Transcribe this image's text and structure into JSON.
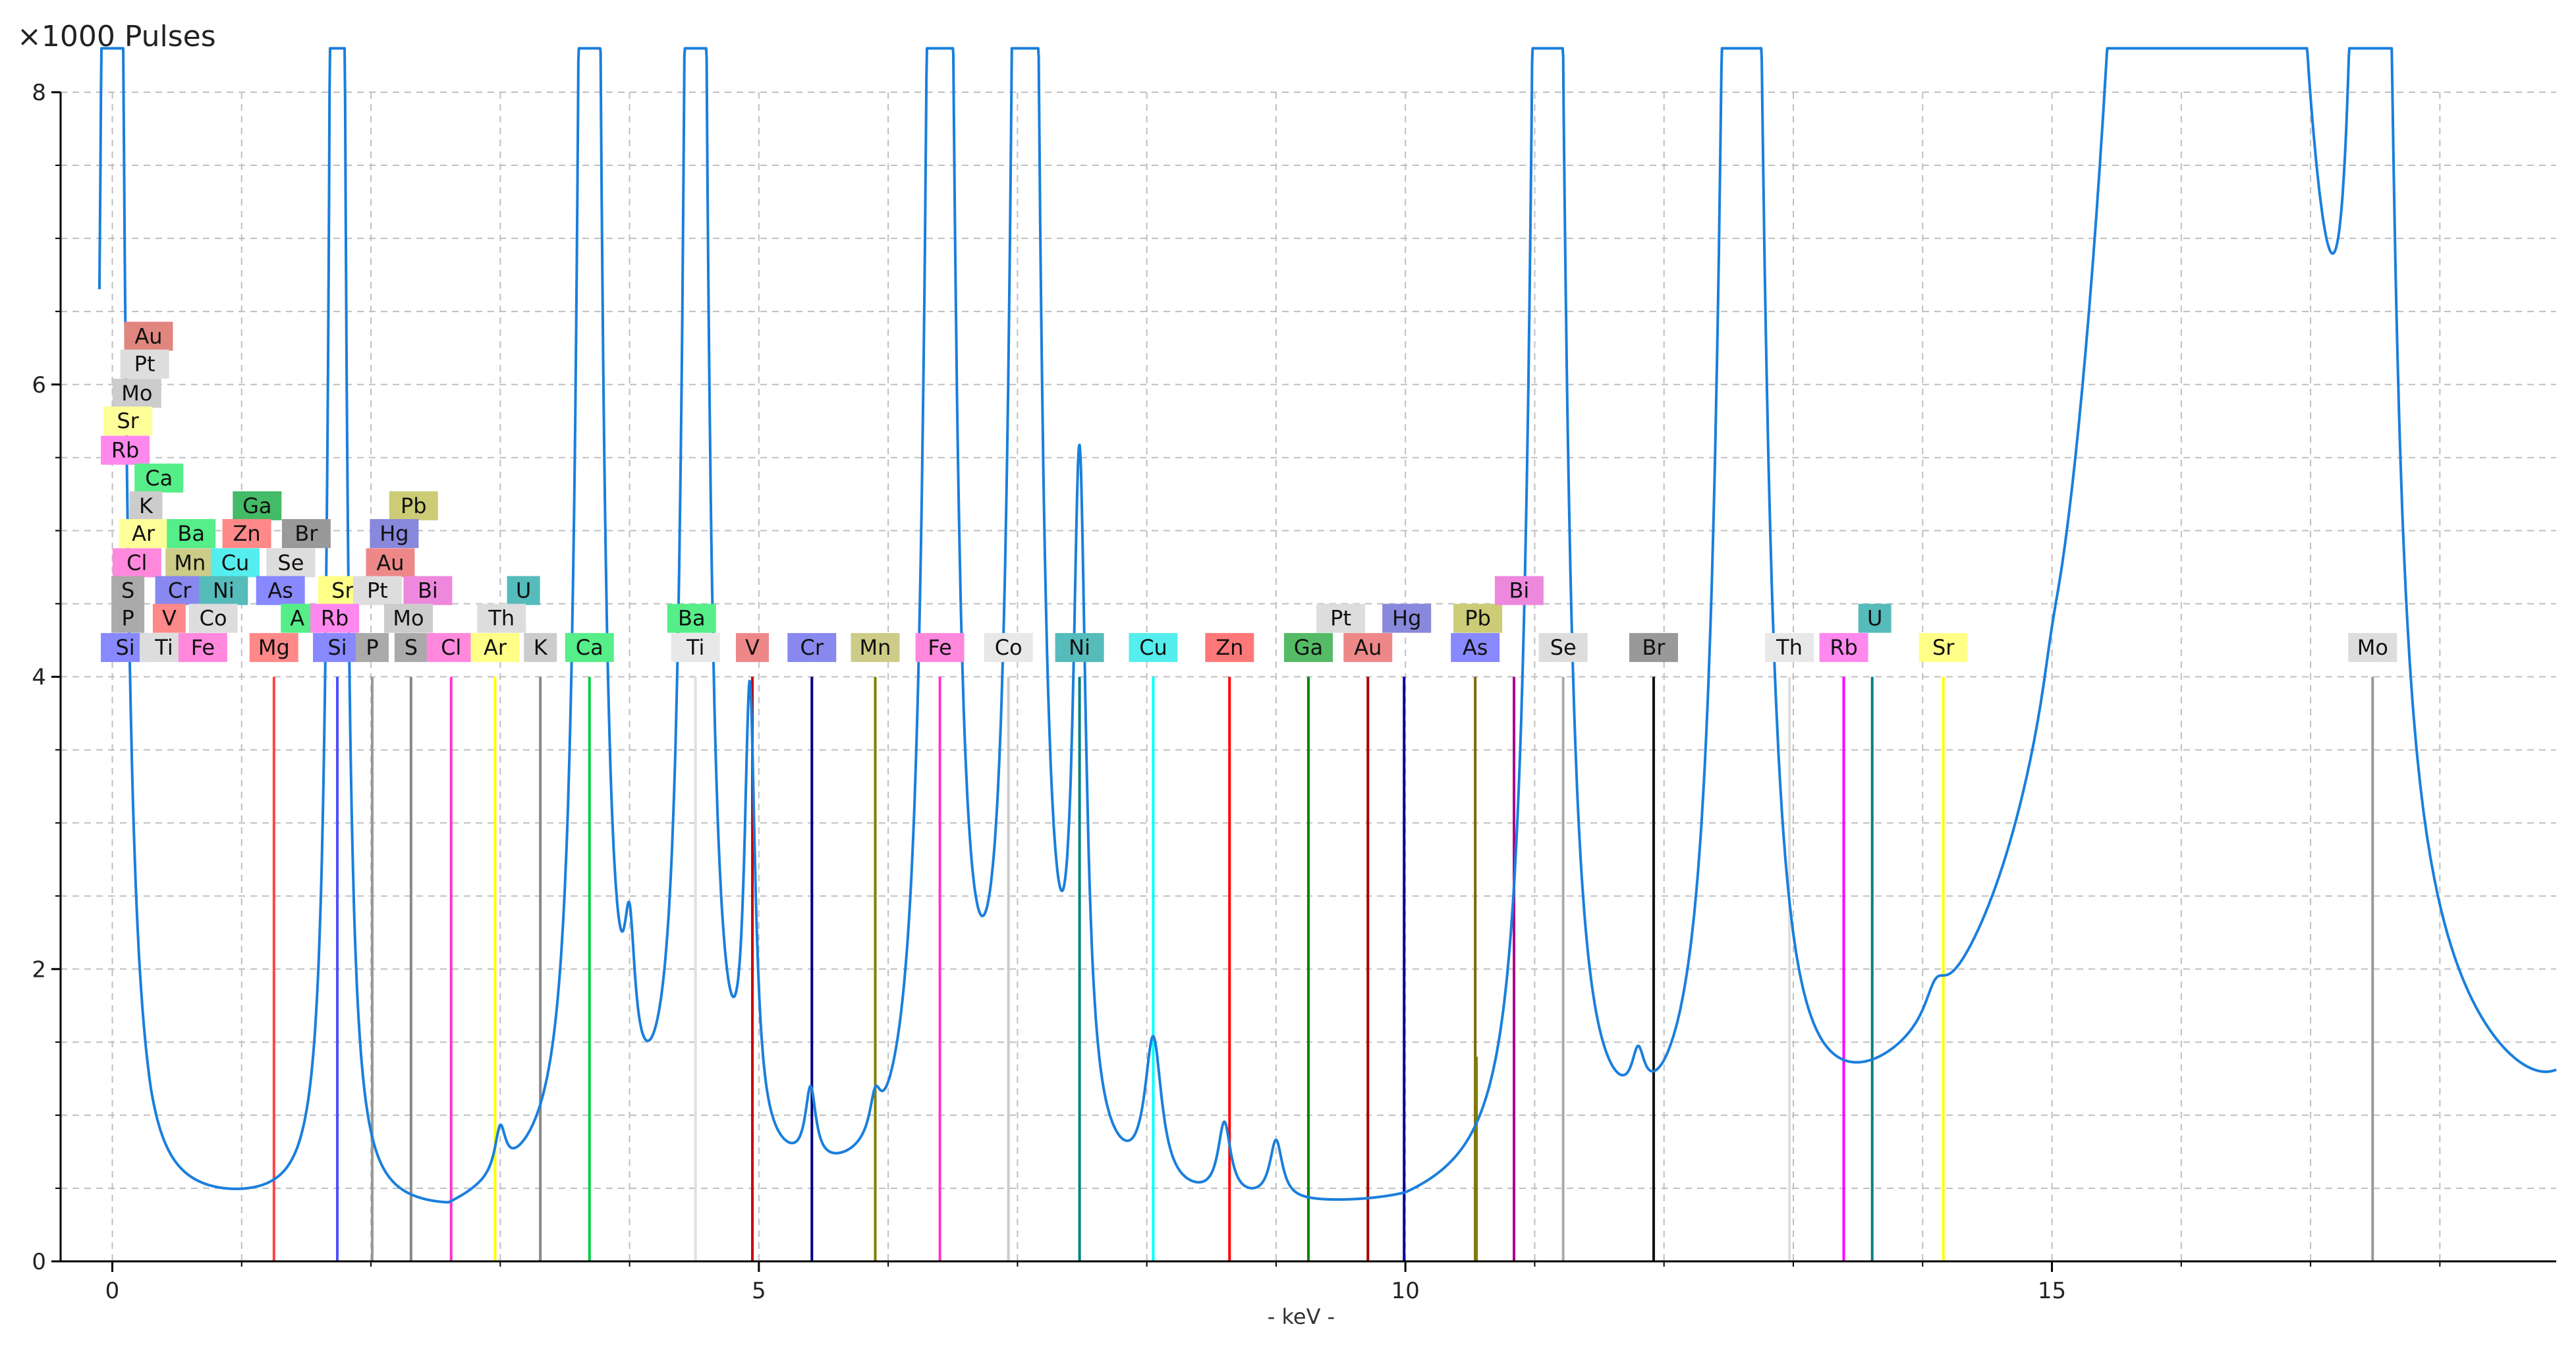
{
  "chart_data": {
    "type": "line",
    "ylabel": "×1000 Pulses",
    "xlabel": "- keV -",
    "xlim": [
      -0.4,
      18.9
    ],
    "ylim": [
      0,
      8
    ],
    "x_ticks": [
      0,
      5,
      10,
      15
    ],
    "y_ticks": [
      0,
      2,
      4,
      6,
      8
    ],
    "grid": true,
    "spectrum": {
      "color": "#1a7fdc",
      "baseline": [
        [
          -0.1,
          0.6
        ],
        [
          0.3,
          0.3
        ],
        [
          0.8,
          0.3
        ],
        [
          1.5,
          0.3
        ],
        [
          2.0,
          0.25
        ],
        [
          2.6,
          0.2
        ],
        [
          3.0,
          0.35
        ],
        [
          3.5,
          0.45
        ],
        [
          4.0,
          0.4
        ],
        [
          5.0,
          0.35
        ],
        [
          6.0,
          0.28
        ],
        [
          7.0,
          0.3
        ],
        [
          8.0,
          0.2
        ],
        [
          9.0,
          0.18
        ],
        [
          10.0,
          0.12
        ],
        [
          11.0,
          0.25
        ],
        [
          12.0,
          0.15
        ],
        [
          13.0,
          0.15
        ],
        [
          14.0,
          0.25
        ],
        [
          15.0,
          0.4
        ],
        [
          16.0,
          0.9
        ],
        [
          17.0,
          0.08
        ],
        [
          18.9,
          0.03
        ]
      ],
      "peaks": [
        [
          0.0,
          30,
          0.05
        ],
        [
          1.74,
          30,
          0.035
        ],
        [
          3.69,
          30,
          0.05
        ],
        [
          4.51,
          30,
          0.05
        ],
        [
          4.93,
          3.0,
          0.05
        ],
        [
          6.4,
          30,
          0.06
        ],
        [
          7.06,
          30,
          0.06
        ],
        [
          7.48,
          4.5,
          0.06
        ],
        [
          8.05,
          1.0,
          0.08
        ],
        [
          9.0,
          0.4,
          0.06
        ],
        [
          11.1,
          30,
          0.07
        ],
        [
          11.8,
          0.3,
          0.06
        ],
        [
          12.6,
          30,
          0.09
        ],
        [
          14.1,
          0.2,
          0.1
        ],
        [
          15.0,
          0.15,
          0.08
        ],
        [
          16.2,
          30,
          0.45
        ],
        [
          17.48,
          30,
          0.07
        ],
        [
          19.6,
          30,
          0.08
        ],
        [
          3.0,
          0.3,
          0.05
        ],
        [
          4.0,
          0.9,
          0.05
        ],
        [
          5.4,
          0.5,
          0.05
        ],
        [
          5.9,
          0.25,
          0.05
        ],
        [
          8.6,
          0.5,
          0.06
        ]
      ]
    },
    "element_lines": [
      {
        "element": "Si",
        "energy": 1.74,
        "height": 4.0,
        "color": "#5050ff"
      },
      {
        "element": "Ti",
        "energy": 4.51,
        "height": 4.0,
        "color": "#e0e0e0"
      },
      {
        "element": "Fe",
        "energy": 6.4,
        "height": 4.0,
        "color": "#ff33cc"
      },
      {
        "element": "Mg",
        "energy": 1.25,
        "height": 4.0,
        "color": "#ff4444"
      },
      {
        "element": "Si",
        "energy": 1.74,
        "height": 4.0,
        "color": "#5050ff"
      },
      {
        "element": "P",
        "energy": 2.01,
        "height": 4.0,
        "color": "#999999"
      },
      {
        "element": "S",
        "energy": 2.31,
        "height": 4.0,
        "color": "#888888"
      },
      {
        "element": "Cl",
        "energy": 2.62,
        "height": 4.0,
        "color": "#ff33cc"
      },
      {
        "element": "Ar",
        "energy": 2.96,
        "height": 4.0,
        "color": "#ffff00"
      },
      {
        "element": "K",
        "energy": 3.31,
        "height": 4.0,
        "color": "#888888"
      },
      {
        "element": "Ca",
        "energy": 3.69,
        "height": 4.0,
        "color": "#00cc44"
      },
      {
        "element": "V",
        "energy": 4.95,
        "height": 4.0,
        "color": "#cc0000"
      },
      {
        "element": "Cr",
        "energy": 5.41,
        "height": 4.0,
        "color": "#000080"
      },
      {
        "element": "Mn",
        "energy": 5.9,
        "height": 4.0,
        "color": "#808000"
      },
      {
        "element": "Co",
        "energy": 6.93,
        "height": 4.0,
        "color": "#cccccc"
      },
      {
        "element": "Ni",
        "energy": 7.48,
        "height": 4.0,
        "color": "#008080"
      },
      {
        "element": "Cu",
        "energy": 8.05,
        "height": 4.0,
        "color": "#00ffff"
      },
      {
        "element": "Zn",
        "energy": 8.64,
        "height": 4.0,
        "color": "#ff0000"
      },
      {
        "element": "Ga",
        "energy": 9.25,
        "height": 4.0,
        "color": "#008800"
      },
      {
        "element": "Au",
        "energy": 9.71,
        "height": 4.0,
        "color": "#aa0000"
      },
      {
        "element": "Hg",
        "energy": 9.99,
        "height": 4.0,
        "color": "#000099"
      },
      {
        "element": "As",
        "energy": 10.54,
        "height": 4.0,
        "color": "#7a6a00"
      },
      {
        "element": "Se",
        "energy": 11.22,
        "height": 4.0,
        "color": "#aaaaaa"
      },
      {
        "element": "Br",
        "energy": 11.92,
        "height": 4.0,
        "color": "#111111"
      },
      {
        "element": "Th",
        "energy": 12.97,
        "height": 4.0,
        "color": "#dddddd"
      },
      {
        "element": "Rb",
        "energy": 13.39,
        "height": 4.0,
        "color": "#ff00ff"
      },
      {
        "element": "U",
        "energy": 13.61,
        "height": 4.0,
        "color": "#008080"
      },
      {
        "element": "Sr",
        "energy": 14.16,
        "height": 4.0,
        "color": "#ffff00"
      },
      {
        "element": "Mo",
        "energy": 17.48,
        "height": 4.0,
        "color": "#999999"
      },
      {
        "element": "Bi",
        "energy": 10.84,
        "height": 4.0,
        "color": "#aa0088"
      },
      {
        "element": "Pb",
        "energy": 10.55,
        "height": 1.4,
        "color": "#808000"
      }
    ],
    "labels": [
      {
        "text": "Au",
        "x": 0.28,
        "y": 6.33,
        "color": "#e0867f"
      },
      {
        "text": "Pt",
        "x": 0.25,
        "y": 6.14,
        "color": "#dddddd"
      },
      {
        "text": "Mo",
        "x": 0.19,
        "y": 5.94,
        "color": "#cccccc"
      },
      {
        "text": "Sr",
        "x": 0.12,
        "y": 5.75,
        "color": "#ffff99"
      },
      {
        "text": "Rb",
        "x": 0.1,
        "y": 5.55,
        "color": "#ff88ee"
      },
      {
        "text": "Ca",
        "x": 0.36,
        "y": 5.36,
        "color": "#55ee88"
      },
      {
        "text": "K",
        "x": 0.26,
        "y": 5.17,
        "color": "#cccccc"
      },
      {
        "text": "Ga",
        "x": 1.12,
        "y": 5.17,
        "color": "#44bb66"
      },
      {
        "text": "Pb",
        "x": 2.33,
        "y": 5.17,
        "color": "#cccc77"
      },
      {
        "text": "Ar",
        "x": 0.24,
        "y": 4.98,
        "color": "#ffff99"
      },
      {
        "text": "Ba",
        "x": 0.61,
        "y": 4.98,
        "color": "#55ee88"
      },
      {
        "text": "Zn",
        "x": 1.04,
        "y": 4.98,
        "color": "#ff8888"
      },
      {
        "text": "Br",
        "x": 1.5,
        "y": 4.98,
        "color": "#999999"
      },
      {
        "text": "Hg",
        "x": 2.18,
        "y": 4.98,
        "color": "#8888dd"
      },
      {
        "text": "Cl",
        "x": 0.19,
        "y": 4.78,
        "color": "#ff88dd"
      },
      {
        "text": "Mn",
        "x": 0.6,
        "y": 4.78,
        "color": "#cccc88"
      },
      {
        "text": "Cu",
        "x": 0.95,
        "y": 4.78,
        "color": "#55eeee"
      },
      {
        "text": "Se",
        "x": 1.38,
        "y": 4.78,
        "color": "#dddddd"
      },
      {
        "text": "Au",
        "x": 2.15,
        "y": 4.78,
        "color": "#ee8888"
      },
      {
        "text": "S",
        "x": 0.12,
        "y": 4.59,
        "color": "#aaaaaa"
      },
      {
        "text": "Cr",
        "x": 0.52,
        "y": 4.59,
        "color": "#8888ee"
      },
      {
        "text": "Ni",
        "x": 0.86,
        "y": 4.59,
        "color": "#55bbbb"
      },
      {
        "text": "As",
        "x": 1.3,
        "y": 4.59,
        "color": "#8888ff"
      },
      {
        "text": "Sr",
        "x": 1.78,
        "y": 4.59,
        "color": "#ffff88"
      },
      {
        "text": "Pt",
        "x": 2.05,
        "y": 4.59,
        "color": "#dddddd"
      },
      {
        "text": "Bi",
        "x": 2.44,
        "y": 4.59,
        "color": "#ee88dd"
      },
      {
        "text": "U",
        "x": 3.18,
        "y": 4.59,
        "color": "#55bbbb"
      },
      {
        "text": "P",
        "x": 0.12,
        "y": 4.4,
        "color": "#aaaaaa"
      },
      {
        "text": "V",
        "x": 0.44,
        "y": 4.4,
        "color": "#ff8888"
      },
      {
        "text": "Co",
        "x": 0.78,
        "y": 4.4,
        "color": "#dddddd"
      },
      {
        "text": "A",
        "x": 1.43,
        "y": 4.4,
        "color": "#55ee88"
      },
      {
        "text": "Rb",
        "x": 1.72,
        "y": 4.4,
        "color": "#ff88ee"
      },
      {
        "text": "Mo",
        "x": 2.29,
        "y": 4.4,
        "color": "#cccccc"
      },
      {
        "text": "Th",
        "x": 3.01,
        "y": 4.4,
        "color": "#dddddd"
      },
      {
        "text": "Ba",
        "x": 4.48,
        "y": 4.4,
        "color": "#55ee88"
      },
      {
        "text": "Pt",
        "x": 9.5,
        "y": 4.4,
        "color": "#dddddd"
      },
      {
        "text": "Hg",
        "x": 10.01,
        "y": 4.4,
        "color": "#8888dd"
      },
      {
        "text": "Pb",
        "x": 10.56,
        "y": 4.4,
        "color": "#cccc77"
      },
      {
        "text": "Bi",
        "x": 10.88,
        "y": 4.59,
        "color": "#ee88dd"
      },
      {
        "text": "U",
        "x": 13.63,
        "y": 4.4,
        "color": "#55bbbb"
      },
      {
        "text": "Si",
        "x": 0.1,
        "y": 4.2,
        "color": "#8888ff"
      },
      {
        "text": "Ti",
        "x": 0.4,
        "y": 4.2,
        "color": "#dddddd"
      },
      {
        "text": "Fe",
        "x": 0.7,
        "y": 4.2,
        "color": "#ff88dd"
      },
      {
        "text": "Mg",
        "x": 1.25,
        "y": 4.2,
        "color": "#ff8888"
      },
      {
        "text": "Si",
        "x": 1.74,
        "y": 4.2,
        "color": "#8888ff"
      },
      {
        "text": "P",
        "x": 2.01,
        "y": 4.2,
        "color": "#aaaaaa"
      },
      {
        "text": "S",
        "x": 2.31,
        "y": 4.2,
        "color": "#aaaaaa"
      },
      {
        "text": "Cl",
        "x": 2.62,
        "y": 4.2,
        "color": "#ff88dd"
      },
      {
        "text": "Ar",
        "x": 2.96,
        "y": 4.2,
        "color": "#ffff88"
      },
      {
        "text": "K",
        "x": 3.31,
        "y": 4.2,
        "color": "#cccccc"
      },
      {
        "text": "Ca",
        "x": 3.69,
        "y": 4.2,
        "color": "#55ee88"
      },
      {
        "text": "Ti",
        "x": 4.51,
        "y": 4.2,
        "color": "#e8e8e8"
      },
      {
        "text": "V",
        "x": 4.95,
        "y": 4.2,
        "color": "#ee8888"
      },
      {
        "text": "Cr",
        "x": 5.41,
        "y": 4.2,
        "color": "#8888ee"
      },
      {
        "text": "Mn",
        "x": 5.9,
        "y": 4.2,
        "color": "#cccc88"
      },
      {
        "text": "Fe",
        "x": 6.4,
        "y": 4.2,
        "color": "#ff88dd"
      },
      {
        "text": "Co",
        "x": 6.93,
        "y": 4.2,
        "color": "#e8e8e8"
      },
      {
        "text": "Ni",
        "x": 7.48,
        "y": 4.2,
        "color": "#55bbbb"
      },
      {
        "text": "Cu",
        "x": 8.05,
        "y": 4.2,
        "color": "#55eeee"
      },
      {
        "text": "Zn",
        "x": 8.64,
        "y": 4.2,
        "color": "#ff7777"
      },
      {
        "text": "Ga",
        "x": 9.25,
        "y": 4.2,
        "color": "#55bb66"
      },
      {
        "text": "Au",
        "x": 9.71,
        "y": 4.2,
        "color": "#ee8888"
      },
      {
        "text": "As",
        "x": 10.54,
        "y": 4.2,
        "color": "#8888ff"
      },
      {
        "text": "Se",
        "x": 11.22,
        "y": 4.2,
        "color": "#dddddd"
      },
      {
        "text": "Br",
        "x": 11.92,
        "y": 4.2,
        "color": "#999999"
      },
      {
        "text": "Th",
        "x": 12.97,
        "y": 4.2,
        "color": "#e8e8e8"
      },
      {
        "text": "Rb",
        "x": 13.39,
        "y": 4.2,
        "color": "#ff88ee"
      },
      {
        "text": "Sr",
        "x": 14.16,
        "y": 4.2,
        "color": "#ffff88"
      },
      {
        "text": "Mo",
        "x": 17.48,
        "y": 4.2,
        "color": "#dddddd"
      }
    ]
  }
}
